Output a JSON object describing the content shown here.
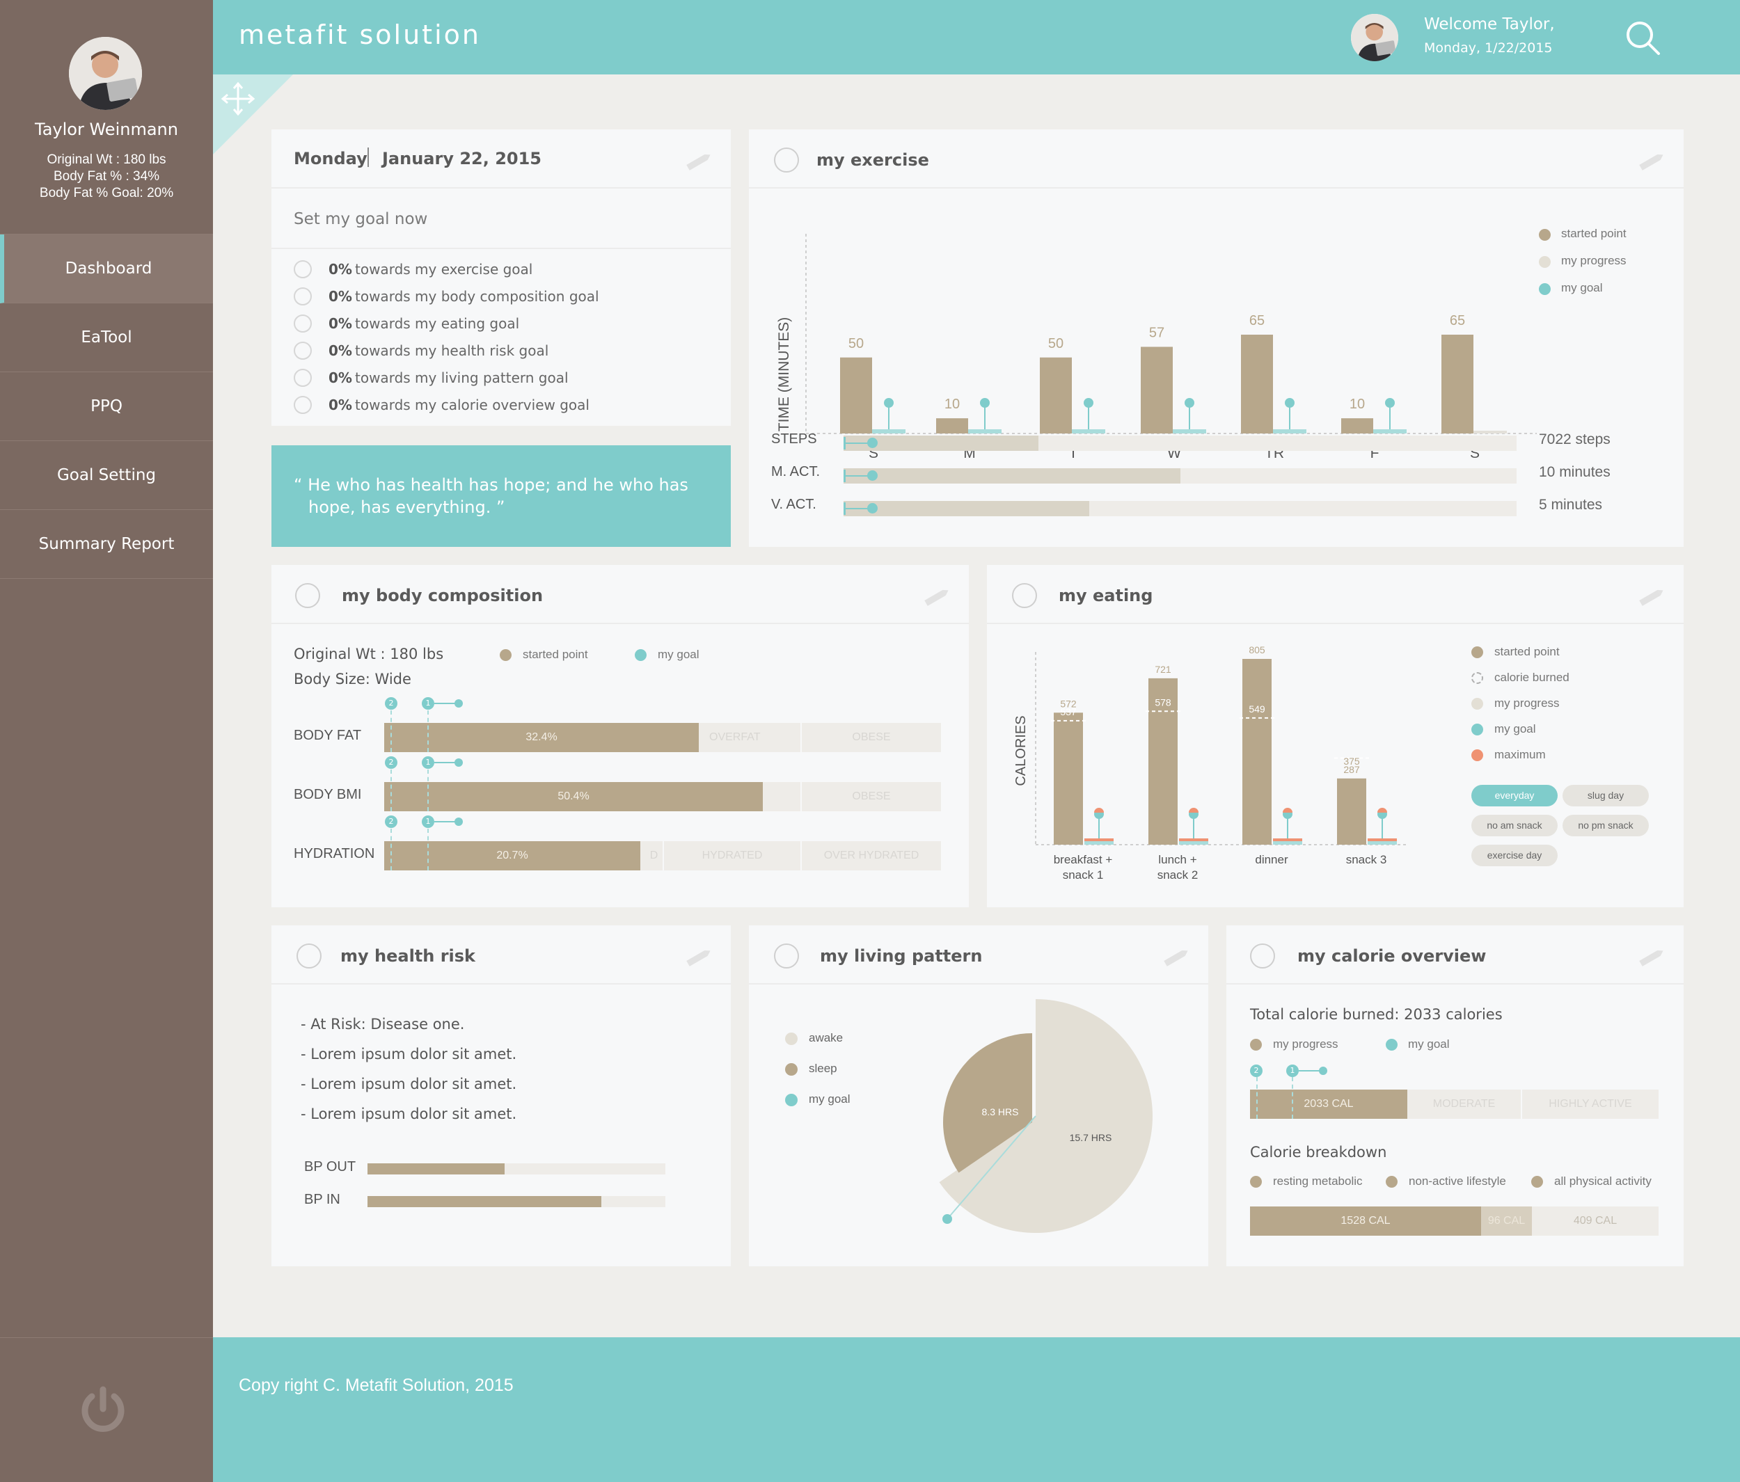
{
  "user": {
    "name": "Taylor Weinmann",
    "stats": [
      "Original Wt : 180 lbs",
      "Body Fat % : 34%",
      "Body Fat % Goal: 20%"
    ]
  },
  "nav": [
    "Dashboard",
    "EaTool",
    "PPQ",
    "Goal Setting",
    "Summary Report"
  ],
  "header": {
    "brand": "metafit solution",
    "welcome": "Welcome Taylor,",
    "date": "Monday, 1/22/2015"
  },
  "footer": {
    "copyright": "Copy right C. Metafit Solution, 2015"
  },
  "goals": {
    "day": "Monday",
    "date": "January 22, 2015",
    "set_goal": "Set my goal now",
    "items": [
      {
        "pct": "0%",
        "text": "towards my exercise goal"
      },
      {
        "pct": "0%",
        "text": "towards my body composition goal"
      },
      {
        "pct": "0%",
        "text": "towards my eating goal"
      },
      {
        "pct": "0%",
        "text": "towards my health risk goal"
      },
      {
        "pct": "0%",
        "text": "towards my living pattern goal"
      },
      {
        "pct": "0%",
        "text": "towards my calorie overview goal"
      }
    ]
  },
  "quote": {
    "line1": "“ He who has health has hope; and he who has",
    "line2": "hope, has everything. ”"
  },
  "exercise": {
    "title": "my exercise",
    "legend": [
      "started point",
      "my progress",
      "my goal"
    ],
    "activities": [
      {
        "label": "STEPS",
        "value": "7022 steps",
        "fraction": 0.29
      },
      {
        "label": "M. ACT.",
        "value": "10 minutes",
        "fraction": 0.5
      },
      {
        "label": "V. ACT.",
        "value": "5 minutes",
        "fraction": 0.365
      }
    ]
  },
  "body": {
    "title": "my body composition",
    "orig": "Original Wt : 180 lbs",
    "size": "Body Size: Wide",
    "legend": [
      "started point",
      "my goal"
    ],
    "rows": [
      {
        "label": "BODY FAT",
        "value": "32.4%",
        "fraction": 0.565,
        "zones": [
          "OVERFAT",
          "OBESE"
        ]
      },
      {
        "label": "BODY BMI",
        "value": "50.4%",
        "fraction": 0.68,
        "zones": [
          "",
          "OBESE"
        ]
      },
      {
        "label": "HYDRATION",
        "value": "20.7%",
        "fraction": 0.46,
        "zones": [
          "D",
          "HYDRATED",
          "OVER HYDRATED"
        ]
      }
    ],
    "markers": [
      "2",
      "1"
    ]
  },
  "eating": {
    "title": "my eating",
    "legend": [
      "started point",
      "calorie burned",
      "my progress",
      "my goal",
      "maximum"
    ],
    "tags": [
      "everyday",
      "slug day",
      "no am snack",
      "no pm snack",
      "exercise day"
    ]
  },
  "health": {
    "title": "my health risk",
    "items": [
      "- At Risk: Disease one.",
      "- Lorem ipsum dolor sit amet.",
      "- Lorem ipsum dolor sit amet.",
      "- Lorem ipsum dolor sit amet."
    ],
    "bp": [
      {
        "label": "BP OUT",
        "fraction": 0.46
      },
      {
        "label": "BP IN",
        "fraction": 0.785
      }
    ]
  },
  "living": {
    "title": "my living pattern",
    "legend": [
      "awake",
      "sleep",
      "my goal"
    ]
  },
  "calorie": {
    "title": "my calorie overview",
    "total": "Total calorie burned: 2033 calories",
    "legend": [
      "my progress",
      "my goal"
    ],
    "markers": [
      "2",
      "1"
    ],
    "bar": {
      "value": "2033 CAL",
      "zones": [
        "MODERATE",
        "HIGHLY ACTIVE"
      ]
    },
    "breakdown_title": "Calorie breakdown",
    "breakdown_legend": [
      "resting metabolic",
      "non-active lifestyle",
      "all physical activity"
    ],
    "breakdown": [
      {
        "label": "1528 CAL",
        "fraction": 0.565
      },
      {
        "label": "96 CAL",
        "fraction": 0.125
      },
      {
        "label": "409 CAL",
        "fraction": 0.31
      }
    ]
  },
  "chart_data": [
    {
      "type": "bar",
      "title": "my exercise",
      "ylabel": "TIME (MINUTES)",
      "categories": [
        "S",
        "M",
        "T",
        "W",
        "TR",
        "F",
        "S"
      ],
      "series": [
        {
          "name": "started point",
          "values": [
            50,
            10,
            50,
            57,
            65,
            10,
            65
          ]
        }
      ]
    },
    {
      "type": "bar",
      "title": "my eating",
      "ylabel": "CALORIES",
      "categories": [
        "breakfast + snack 1",
        "lunch + snack 2",
        "dinner",
        "snack 3"
      ],
      "series": [
        {
          "name": "started point",
          "values": [
            572,
            721,
            805,
            287
          ]
        },
        {
          "name": "calorie burned",
          "values": [
            537,
            578,
            549,
            375
          ]
        }
      ]
    },
    {
      "type": "pie",
      "title": "my living pattern",
      "slices": [
        {
          "name": "sleep",
          "label": "8.3 HRS",
          "value": 8.3
        },
        {
          "name": "awake",
          "label": "15.7 HRS",
          "value": 15.7
        }
      ]
    }
  ]
}
